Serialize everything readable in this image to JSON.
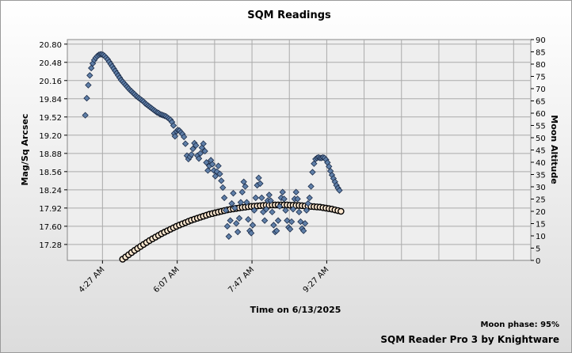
{
  "chart_data": {
    "type": "scatter",
    "title": "SQM Readings",
    "xlabel": "Time on 6/13/2025",
    "ylabel_left": "Mag/Sq Arcsec",
    "ylabel_right": "Moon Altitude",
    "x_ticks": [
      "4:27 AM",
      "6:07 AM",
      "7:47 AM",
      "9:27 AM"
    ],
    "x_range_minutes": [
      220,
      840
    ],
    "x_tick_minutes": [
      267,
      367,
      467,
      567
    ],
    "y_left_ticks": [
      "17.28",
      "17.60",
      "17.92",
      "18.24",
      "18.56",
      "18.88",
      "19.20",
      "19.52",
      "19.84",
      "20.16",
      "20.48",
      "20.80"
    ],
    "y_left_range": [
      17.0,
      20.88
    ],
    "y_right_ticks": [
      "0",
      "5",
      "10",
      "15",
      "20",
      "25",
      "30",
      "35",
      "40",
      "45",
      "50",
      "55",
      "60",
      "65",
      "70",
      "75",
      "80",
      "85",
      "90"
    ],
    "y_right_range": [
      0,
      90
    ],
    "grid": true,
    "series": [
      {
        "axis": "left",
        "marker": "diamond",
        "points": [
          [
            244,
            19.55
          ],
          [
            246,
            19.85
          ],
          [
            248,
            20.08
          ],
          [
            250,
            20.25
          ],
          [
            252,
            20.38
          ],
          [
            254,
            20.46
          ],
          [
            256,
            20.52
          ],
          [
            258,
            20.56
          ],
          [
            260,
            20.59
          ],
          [
            262,
            20.61
          ],
          [
            264,
            20.62
          ],
          [
            266,
            20.62
          ],
          [
            268,
            20.61
          ],
          [
            270,
            20.59
          ],
          [
            272,
            20.56
          ],
          [
            274,
            20.53
          ],
          [
            276,
            20.49
          ],
          [
            278,
            20.45
          ],
          [
            280,
            20.41
          ],
          [
            282,
            20.37
          ],
          [
            284,
            20.33
          ],
          [
            286,
            20.29
          ],
          [
            288,
            20.25
          ],
          [
            290,
            20.21
          ],
          [
            292,
            20.17
          ],
          [
            294,
            20.14
          ],
          [
            296,
            20.11
          ],
          [
            298,
            20.08
          ],
          [
            300,
            20.05
          ],
          [
            302,
            20.02
          ],
          [
            304,
            19.99
          ],
          [
            306,
            19.97
          ],
          [
            308,
            19.94
          ],
          [
            310,
            19.92
          ],
          [
            312,
            19.89
          ],
          [
            314,
            19.87
          ],
          [
            316,
            19.85
          ],
          [
            318,
            19.83
          ],
          [
            320,
            19.81
          ],
          [
            322,
            19.79
          ],
          [
            324,
            19.76
          ],
          [
            326,
            19.74
          ],
          [
            328,
            19.72
          ],
          [
            330,
            19.7
          ],
          [
            332,
            19.68
          ],
          [
            334,
            19.66
          ],
          [
            336,
            19.64
          ],
          [
            338,
            19.62
          ],
          [
            340,
            19.6
          ],
          [
            342,
            19.59
          ],
          [
            344,
            19.57
          ],
          [
            346,
            19.56
          ],
          [
            348,
            19.55
          ],
          [
            350,
            19.54
          ],
          [
            352,
            19.53
          ],
          [
            354,
            19.51
          ],
          [
            356,
            19.49
          ],
          [
            358,
            19.47
          ],
          [
            360,
            19.43
          ],
          [
            362,
            19.37
          ],
          [
            363,
            19.23
          ],
          [
            364,
            19.18
          ],
          [
            366,
            19.27
          ],
          [
            368,
            19.29
          ],
          [
            370,
            19.28
          ],
          [
            372,
            19.25
          ],
          [
            374,
            19.22
          ],
          [
            376,
            19.17
          ],
          [
            378,
            19.05
          ],
          [
            380,
            18.84
          ],
          [
            382,
            18.78
          ],
          [
            384,
            18.82
          ],
          [
            386,
            18.86
          ],
          [
            388,
            18.96
          ],
          [
            390,
            19.06
          ],
          [
            392,
            19.02
          ],
          [
            394,
            18.84
          ],
          [
            396,
            18.79
          ],
          [
            398,
            18.88
          ],
          [
            400,
            18.98
          ],
          [
            402,
            19.05
          ],
          [
            404,
            18.92
          ],
          [
            406,
            18.72
          ],
          [
            408,
            18.58
          ],
          [
            410,
            18.66
          ],
          [
            412,
            18.76
          ],
          [
            414,
            18.69
          ],
          [
            416,
            18.58
          ],
          [
            418,
            18.48
          ],
          [
            420,
            18.56
          ],
          [
            422,
            18.66
          ],
          [
            424,
            18.52
          ],
          [
            426,
            18.4
          ],
          [
            428,
            18.28
          ],
          [
            430,
            18.1
          ],
          [
            432,
            17.88
          ],
          [
            434,
            17.6
          ],
          [
            436,
            17.42
          ],
          [
            438,
            17.7
          ],
          [
            440,
            18.0
          ],
          [
            442,
            18.18
          ],
          [
            444,
            17.92
          ],
          [
            446,
            17.65
          ],
          [
            448,
            17.5
          ],
          [
            450,
            17.74
          ],
          [
            452,
            18.02
          ],
          [
            454,
            18.2
          ],
          [
            456,
            18.38
          ],
          [
            458,
            18.3
          ],
          [
            460,
            18.02
          ],
          [
            462,
            17.72
          ],
          [
            464,
            17.52
          ],
          [
            466,
            17.48
          ],
          [
            468,
            17.62
          ],
          [
            470,
            17.88
          ],
          [
            472,
            18.1
          ],
          [
            474,
            18.32
          ],
          [
            476,
            18.45
          ],
          [
            478,
            18.35
          ],
          [
            480,
            18.1
          ],
          [
            482,
            17.85
          ],
          [
            484,
            17.7
          ],
          [
            486,
            17.9
          ],
          [
            488,
            18.05
          ],
          [
            490,
            18.15
          ],
          [
            492,
            18.05
          ],
          [
            494,
            17.85
          ],
          [
            496,
            17.62
          ],
          [
            498,
            17.5
          ],
          [
            500,
            17.52
          ],
          [
            502,
            17.7
          ],
          [
            504,
            17.95
          ],
          [
            506,
            18.1
          ],
          [
            508,
            18.2
          ],
          [
            510,
            18.08
          ],
          [
            512,
            17.88
          ],
          [
            514,
            17.7
          ],
          [
            516,
            17.58
          ],
          [
            518,
            17.55
          ],
          [
            520,
            17.68
          ],
          [
            522,
            17.9
          ],
          [
            524,
            18.08
          ],
          [
            526,
            18.2
          ],
          [
            528,
            18.08
          ],
          [
            530,
            17.85
          ],
          [
            532,
            17.68
          ],
          [
            534,
            17.56
          ],
          [
            536,
            17.52
          ],
          [
            538,
            17.65
          ],
          [
            540,
            17.88
          ],
          [
            542,
            18.0
          ],
          [
            544,
            18.1
          ],
          [
            546,
            18.3
          ],
          [
            548,
            18.55
          ],
          [
            550,
            18.7
          ],
          [
            552,
            18.78
          ],
          [
            554,
            18.8
          ],
          [
            556,
            18.81
          ],
          [
            558,
            18.8
          ],
          [
            560,
            18.8
          ],
          [
            562,
            18.81
          ],
          [
            564,
            18.8
          ],
          [
            566,
            18.77
          ],
          [
            568,
            18.72
          ],
          [
            570,
            18.65
          ],
          [
            572,
            18.57
          ],
          [
            574,
            18.5
          ],
          [
            576,
            18.44
          ],
          [
            578,
            18.38
          ],
          [
            580,
            18.32
          ],
          [
            582,
            18.27
          ],
          [
            584,
            18.23
          ]
        ]
      },
      {
        "axis": "right",
        "marker": "circle",
        "points": [
          [
            294,
            0.5
          ],
          [
            298,
            1.4
          ],
          [
            302,
            2.3
          ],
          [
            306,
            3.2
          ],
          [
            310,
            4.1
          ],
          [
            314,
            4.9
          ],
          [
            318,
            5.7
          ],
          [
            322,
            6.5
          ],
          [
            326,
            7.3
          ],
          [
            330,
            8.1
          ],
          [
            334,
            8.8
          ],
          [
            338,
            9.5
          ],
          [
            342,
            10.2
          ],
          [
            346,
            10.9
          ],
          [
            350,
            11.5
          ],
          [
            354,
            12.1
          ],
          [
            358,
            12.7
          ],
          [
            362,
            13.3
          ],
          [
            366,
            13.9
          ],
          [
            370,
            14.4
          ],
          [
            374,
            14.9
          ],
          [
            378,
            15.4
          ],
          [
            382,
            15.9
          ],
          [
            386,
            16.4
          ],
          [
            390,
            16.8
          ],
          [
            394,
            17.2
          ],
          [
            398,
            17.6
          ],
          [
            402,
            18.0
          ],
          [
            406,
            18.4
          ],
          [
            410,
            18.8
          ],
          [
            414,
            19.1
          ],
          [
            418,
            19.4
          ],
          [
            422,
            19.7
          ],
          [
            426,
            20.0
          ],
          [
            430,
            20.3
          ],
          [
            434,
            20.6
          ],
          [
            438,
            20.8
          ],
          [
            442,
            21.0
          ],
          [
            446,
            21.2
          ],
          [
            450,
            21.4
          ],
          [
            454,
            21.6
          ],
          [
            458,
            21.7
          ],
          [
            462,
            21.9
          ],
          [
            466,
            22.0
          ],
          [
            470,
            22.1
          ],
          [
            474,
            22.2
          ],
          [
            478,
            22.3
          ],
          [
            482,
            22.4
          ],
          [
            486,
            22.5
          ],
          [
            490,
            22.5
          ],
          [
            494,
            22.6
          ],
          [
            498,
            22.6
          ],
          [
            502,
            22.6
          ],
          [
            506,
            22.6
          ],
          [
            510,
            22.6
          ],
          [
            514,
            22.6
          ],
          [
            518,
            22.5
          ],
          [
            522,
            22.5
          ],
          [
            526,
            22.4
          ],
          [
            530,
            22.4
          ],
          [
            534,
            22.3
          ],
          [
            538,
            22.2
          ],
          [
            542,
            22.1
          ],
          [
            546,
            22.0
          ],
          [
            550,
            21.9
          ],
          [
            554,
            21.8
          ],
          [
            558,
            21.7
          ],
          [
            562,
            21.5
          ],
          [
            566,
            21.3
          ],
          [
            570,
            21.1
          ],
          [
            574,
            20.9
          ],
          [
            578,
            20.6
          ],
          [
            582,
            20.3
          ],
          [
            586,
            20.0
          ]
        ]
      }
    ]
  },
  "footer": {
    "moon_phase": "Moon phase: 95%",
    "credit": "SQM Reader Pro 3 by Knightware"
  },
  "colors": {
    "diamond_fill": "#5f7fa8",
    "diamond_stroke": "#1c2d4a",
    "circle_fill": "#ffe8d0",
    "circle_stroke": "#000000",
    "plot_bg": "#eeeeee",
    "grid": "#aaaaaa"
  }
}
